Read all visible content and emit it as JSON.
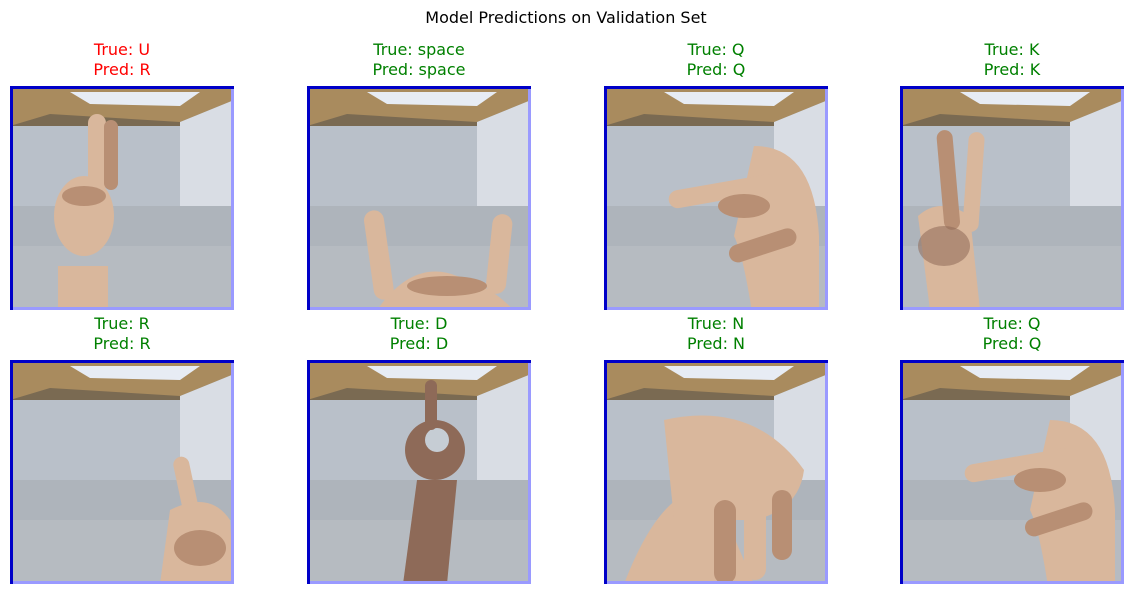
{
  "figure": {
    "title": "Model Predictions on Validation Set"
  },
  "colors": {
    "correct": "#008000",
    "incorrect": "#ff0000",
    "frame_dark": "#0000c8",
    "frame_light": "#9a9aff"
  },
  "predictions": [
    {
      "true_label": "True: U",
      "pred_label": "Pred: R",
      "correct": false,
      "pose": "index-up"
    },
    {
      "true_label": "True: space",
      "pred_label": "Pred: space",
      "correct": true,
      "pose": "open-cup"
    },
    {
      "true_label": "True: Q",
      "pred_label": "Pred: Q",
      "correct": true,
      "pose": "point-side"
    },
    {
      "true_label": "True: K",
      "pred_label": "Pred: K",
      "correct": true,
      "pose": "two-fingers"
    },
    {
      "true_label": "True: R",
      "pred_label": "Pred: R",
      "correct": true,
      "pose": "crossed-low"
    },
    {
      "true_label": "True: D",
      "pred_label": "Pred: D",
      "correct": true,
      "pose": "circle-up"
    },
    {
      "true_label": "True: N",
      "pred_label": "Pred: N",
      "correct": true,
      "pose": "fist-down"
    },
    {
      "true_label": "True: Q",
      "pred_label": "Pred: Q",
      "correct": true,
      "pose": "point-side"
    }
  ]
}
